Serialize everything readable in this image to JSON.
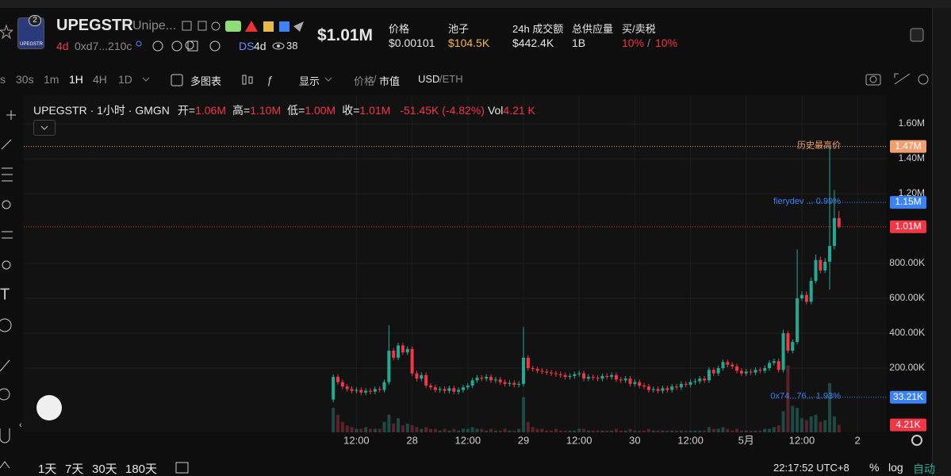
{
  "header": {
    "token_symbol": "UPEGSTR",
    "token_name": "Unipe...",
    "badge": "2",
    "logo_text": "UPEGSTR",
    "age": "4d",
    "address": "0xd7...210c",
    "ds": "DS",
    "ds_age": "4d",
    "views": "38",
    "market_cap": "$1.01M",
    "stats": [
      {
        "label": "价格",
        "value": "$0.00101"
      },
      {
        "label": "池子",
        "value": "$104.5K"
      },
      {
        "label": "24h 成交额",
        "value": "$442.4K"
      },
      {
        "label": "总供应量",
        "value": "1B"
      },
      {
        "label": "买/卖税",
        "value": "10%",
        "separator": "/",
        "value2": "10%"
      }
    ]
  },
  "toolbar": {
    "intervals": [
      "s",
      "30s",
      "1m",
      "1H",
      "4H",
      "1D"
    ],
    "active_interval": 3,
    "multi_chart": "多图表",
    "display": "显示",
    "price": "价格",
    "slash": "/",
    "mcap": "市值",
    "usd": "USD",
    "eth": "/ETH"
  },
  "legend": {
    "title": "UPEGSTR · 1小时 · GMGN",
    "items": [
      {
        "key": "开=",
        "value": "1.06M"
      },
      {
        "key": "高=",
        "value": "1.10M"
      },
      {
        "key": "低=",
        "value": "1.00M"
      },
      {
        "key": "收=",
        "value": "1.01M"
      }
    ],
    "change": "-51.45K (-4.82%)",
    "vol_key": "Vol",
    "vol_value": "4.21 K"
  },
  "chart_data": {
    "type": "candlestick",
    "grid": true,
    "up_color": "#22ab94",
    "down_color": "#f23645",
    "volume_up_color": "#1d4a43",
    "volume_down_color": "#5a2229",
    "xlim": [
      -66.7,
      119.3
    ],
    "xticks": [
      {
        "value": 5,
        "label": "12:00"
      },
      {
        "value": 17,
        "label": "28"
      },
      {
        "value": 29,
        "label": "12:00"
      },
      {
        "value": 41,
        "label": "29"
      },
      {
        "value": 53,
        "label": "12:00"
      },
      {
        "value": 65,
        "label": "30"
      },
      {
        "value": 77,
        "label": "12:00"
      },
      {
        "value": 89,
        "label": "5月"
      },
      {
        "value": 101,
        "label": "12:00"
      },
      {
        "value": 113,
        "label": "2"
      }
    ],
    "ylim": [
      -168,
      1764
    ],
    "yticks": [
      {
        "value": 200,
        "label": "200.00K"
      },
      {
        "value": 400,
        "label": "400.00K"
      },
      {
        "value": 600,
        "label": "600.00K"
      },
      {
        "value": 800,
        "label": "800.00K"
      },
      {
        "value": 1200,
        "label": "1.20M"
      },
      {
        "value": 1400,
        "label": "1.40M"
      },
      {
        "value": 1600,
        "label": "1.60M"
      }
    ],
    "open": [
      20,
      150,
      120,
      95,
      80,
      70,
      75,
      60,
      70,
      65,
      80,
      75,
      120,
      300,
      260,
      330,
      290,
      310,
      170,
      140,
      160,
      100,
      90,
      75,
      80,
      70,
      85,
      65,
      75,
      90,
      100,
      130,
      145,
      140,
      150,
      130,
      135,
      120,
      110,
      115,
      105,
      110,
      260,
      200,
      195,
      185,
      180,
      175,
      170,
      165,
      160,
      150,
      155,
      165,
      170,
      140,
      150,
      145,
      140,
      155,
      150,
      160,
      135,
      130,
      140,
      110,
      120,
      100,
      95,
      75,
      80,
      70,
      85,
      75,
      95,
      90,
      110,
      105,
      120,
      125,
      140,
      130,
      190,
      170,
      200,
      235,
      220,
      210,
      185,
      170,
      180,
      175,
      190,
      185,
      200,
      230,
      240,
      190,
      400,
      300,
      350,
      600,
      620,
      580,
      700,
      820,
      760,
      810,
      900,
      1060
    ],
    "high": [
      165,
      165,
      135,
      110,
      95,
      90,
      90,
      85,
      85,
      95,
      95,
      135,
      445,
      315,
      345,
      345,
      325,
      325,
      185,
      175,
      175,
      115,
      105,
      95,
      95,
      100,
      100,
      90,
      105,
      115,
      145,
      160,
      160,
      165,
      165,
      150,
      150,
      135,
      130,
      130,
      125,
      435,
      275,
      215,
      210,
      200,
      195,
      190,
      185,
      180,
      175,
      170,
      180,
      185,
      185,
      165,
      165,
      160,
      170,
      170,
      175,
      175,
      150,
      155,
      155,
      135,
      135,
      115,
      110,
      95,
      95,
      100,
      100,
      110,
      110,
      125,
      125,
      135,
      140,
      155,
      155,
      205,
      205,
      215,
      250,
      250,
      235,
      225,
      200,
      195,
      195,
      205,
      205,
      215,
      245,
      255,
      255,
      420,
      415,
      365,
      880,
      640,
      640,
      720,
      850,
      840,
      830,
      1468,
      1220,
      1100
    ],
    "low": [
      5,
      105,
      80,
      65,
      55,
      55,
      45,
      45,
      50,
      50,
      60,
      60,
      105,
      245,
      245,
      275,
      275,
      155,
      125,
      125,
      85,
      75,
      60,
      60,
      55,
      55,
      50,
      50,
      60,
      75,
      85,
      115,
      125,
      125,
      115,
      115,
      105,
      95,
      95,
      90,
      90,
      95,
      185,
      180,
      170,
      165,
      160,
      155,
      150,
      145,
      135,
      135,
      140,
      150,
      125,
      125,
      130,
      125,
      125,
      135,
      135,
      120,
      115,
      115,
      95,
      95,
      85,
      80,
      60,
      60,
      55,
      55,
      60,
      60,
      75,
      75,
      90,
      90,
      105,
      110,
      115,
      115,
      155,
      155,
      185,
      205,
      195,
      170,
      155,
      155,
      160,
      160,
      170,
      170,
      185,
      215,
      175,
      175,
      285,
      285,
      335,
      585,
      565,
      565,
      685,
      745,
      745,
      650,
      880,
      1000
    ],
    "close": [
      150,
      120,
      95,
      80,
      70,
      75,
      60,
      70,
      65,
      80,
      75,
      120,
      300,
      260,
      330,
      290,
      310,
      170,
      140,
      160,
      100,
      90,
      75,
      80,
      70,
      85,
      65,
      75,
      90,
      100,
      130,
      145,
      140,
      150,
      130,
      135,
      120,
      110,
      115,
      105,
      110,
      260,
      200,
      195,
      185,
      180,
      175,
      170,
      165,
      160,
      150,
      155,
      165,
      170,
      140,
      150,
      145,
      140,
      155,
      150,
      160,
      135,
      130,
      140,
      110,
      120,
      100,
      95,
      75,
      80,
      70,
      85,
      75,
      95,
      90,
      110,
      105,
      120,
      125,
      140,
      130,
      190,
      170,
      200,
      235,
      220,
      210,
      185,
      170,
      180,
      175,
      190,
      185,
      200,
      230,
      240,
      190,
      400,
      300,
      350,
      600,
      620,
      580,
      700,
      820,
      760,
      810,
      900,
      1060,
      1010
    ],
    "volume": [
      14,
      10,
      6,
      4,
      3,
      2,
      2,
      3,
      2,
      2,
      2,
      6,
      10,
      5,
      8,
      4,
      5,
      4,
      3,
      2,
      3,
      2,
      2,
      1,
      2,
      1,
      2,
      1,
      2,
      2,
      3,
      2,
      2,
      1,
      2,
      1,
      1,
      2,
      1,
      1,
      2,
      20,
      6,
      3,
      2,
      2,
      1,
      1,
      2,
      1,
      1,
      1,
      1,
      2,
      2,
      1,
      1,
      1,
      1,
      1,
      1,
      2,
      1,
      1,
      2,
      1,
      1,
      1,
      2,
      1,
      1,
      1,
      1,
      1,
      1,
      1,
      1,
      1,
      1,
      1,
      1,
      3,
      2,
      2,
      3,
      2,
      1,
      2,
      1,
      1,
      1,
      1,
      1,
      2,
      2,
      3,
      4,
      12,
      38,
      15,
      14,
      8,
      7,
      9,
      10,
      6,
      7,
      28,
      9,
      4.21
    ],
    "volume_ylim": [
      0,
      45
    ],
    "price_lines": [
      {
        "value": 1470,
        "label": "1.47M",
        "text": "历史最高价",
        "color": "#f0a070",
        "style": "full"
      },
      {
        "value": 1150,
        "label": "1.15M",
        "text": "fierydev ... 0.99%",
        "color": "#3b82f6",
        "style": "short"
      },
      {
        "value": 1010,
        "label": "1.01M",
        "color": "#f23645",
        "style": "full"
      },
      {
        "value": 33.21,
        "label": "33.21K",
        "text": "0x74...76... 1.93%",
        "color": "#3b82f6",
        "style": "short"
      }
    ],
    "volume_line": {
      "value": 4.21,
      "label": "4.21K",
      "color": "#f23645"
    }
  },
  "footer": {
    "ranges": [
      "1天",
      "7天",
      "30天",
      "180天"
    ],
    "clock": "22:17:52 UTC+8",
    "percent": "%",
    "log": "log",
    "auto": "自动"
  }
}
